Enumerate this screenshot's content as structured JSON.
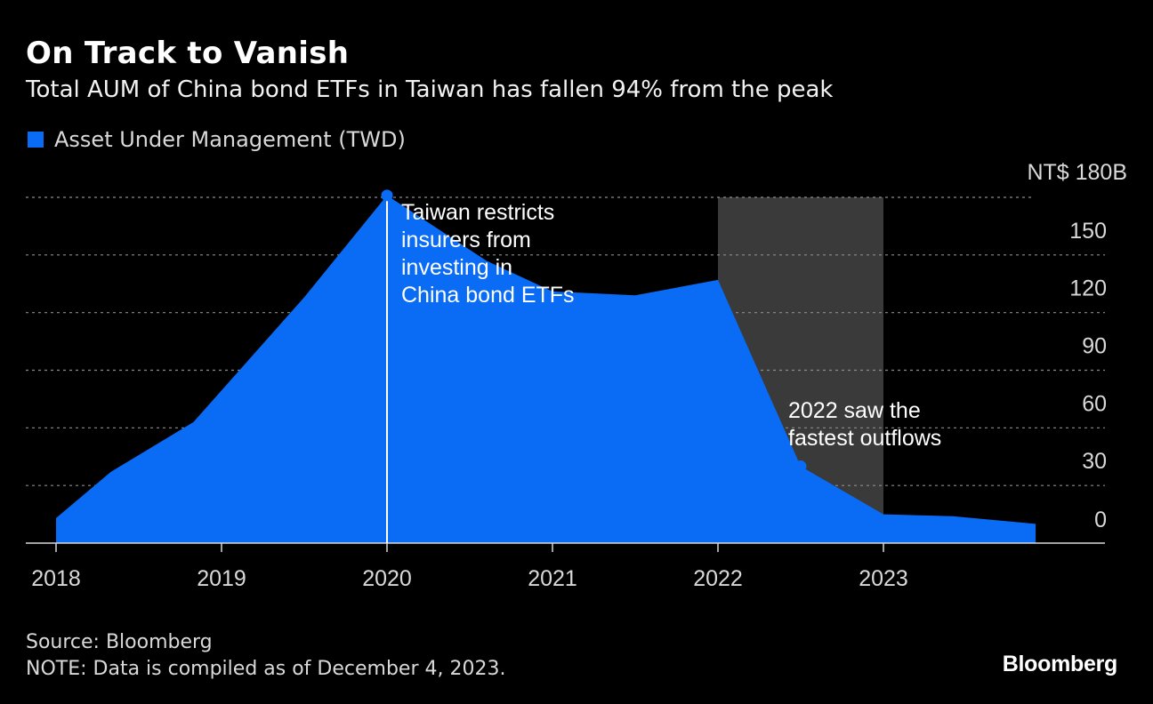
{
  "title": "On Track to Vanish",
  "subtitle": "Total AUM of China bond ETFs in Taiwan has fallen 94% from the peak",
  "legend": {
    "label": "Asset Under Management (TWD)"
  },
  "colors": {
    "series": "#0a6cf5",
    "shade": "#3a3a3a",
    "grid": "#8c8c8c",
    "background": "#000000"
  },
  "footer": {
    "source": "Source: Bloomberg",
    "note": "NOTE: Data is compiled as of December 4, 2023."
  },
  "brand": "Bloomberg",
  "chart_data": {
    "type": "area",
    "ylabel": "",
    "xlabel": "",
    "y_unit_label": "NT$ 180B",
    "ylim": [
      0,
      180
    ],
    "xlim": [
      2017.95,
      2024.5
    ],
    "y_ticks": [
      0,
      30,
      60,
      90,
      120,
      150,
      180
    ],
    "y_tick_labels": [
      "0",
      "30",
      "60",
      "90",
      "120",
      "150",
      "NT$ 180B"
    ],
    "x_ticks": [
      2018,
      2019,
      2020,
      2021,
      2022,
      2023
    ],
    "x_tick_labels": [
      "2018",
      "2019",
      "2020",
      "2021",
      "2022",
      "2023"
    ],
    "grid": true,
    "legend_position": "top-left",
    "series": [
      {
        "name": "Asset Under Management (TWD)",
        "x": [
          2018.0,
          2018.33,
          2018.83,
          2019.5,
          2020.0,
          2020.6,
          2021.0,
          2021.5,
          2022.0,
          2022.5,
          2023.0,
          2023.42,
          2023.92
        ],
        "y": [
          13,
          37,
          63,
          128,
          181,
          147,
          131,
          129,
          137,
          40,
          15,
          14,
          10
        ]
      }
    ],
    "shaded_region": {
      "x_start": 2022.0,
      "x_end": 2023.0
    },
    "annotations": [
      {
        "x": 2020.0,
        "y": 181,
        "type": "vertical-line",
        "lines": [
          "Taiwan restricts",
          "insurers from",
          "investing in",
          "China bond ETFs"
        ]
      },
      {
        "x": 2022.5,
        "y": 40,
        "type": "point",
        "lines": [
          "2022 saw the",
          "fastest outflows"
        ]
      }
    ]
  }
}
